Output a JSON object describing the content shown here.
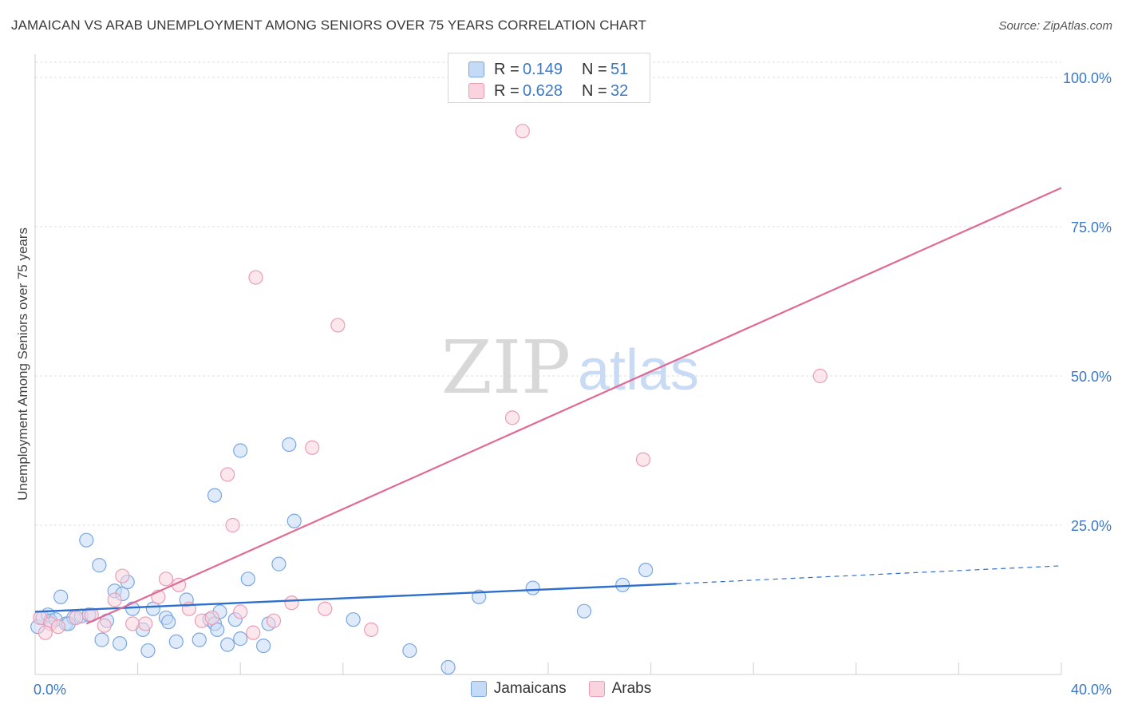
{
  "header": {
    "title": "JAMAICAN VS ARAB UNEMPLOYMENT AMONG SENIORS OVER 75 YEARS CORRELATION CHART",
    "source": "Source: ZipAtlas.com"
  },
  "watermark": {
    "zip": "ZIP",
    "atlas": "atlas"
  },
  "legend_top": [
    {
      "r_label": "R =",
      "r_value": "0.149",
      "n_label": "N =",
      "n_value": "51",
      "color": "#c5daf7"
    },
    {
      "r_label": "R =",
      "r_value": "0.628",
      "n_label": "N =",
      "n_value": "32",
      "color": "#fad3df"
    }
  ],
  "legend_bottom": [
    {
      "label": "Jamaicans",
      "color": "#c5daf7"
    },
    {
      "label": "Arabs",
      "color": "#fad3df"
    }
  ],
  "chart_data": {
    "type": "scatter",
    "title": "JAMAICAN VS ARAB UNEMPLOYMENT AMONG SENIORS OVER 75 YEARS CORRELATION CHART",
    "xlabel": "",
    "ylabel": "Unemployment Among Seniors over 75 years",
    "xlim": [
      0,
      40
    ],
    "ylim": [
      0,
      100
    ],
    "x_tick_labels": [
      {
        "value": 0,
        "label": "0.0%"
      },
      {
        "value": 40,
        "label": "40.0%"
      }
    ],
    "y_tick_labels": [
      {
        "value": 25,
        "label": "25.0%"
      },
      {
        "value": 50,
        "label": "50.0%"
      },
      {
        "value": 75,
        "label": "75.0%"
      },
      {
        "value": 100,
        "label": "100.0%"
      }
    ],
    "grid": true,
    "series": [
      {
        "name": "Jamaicans",
        "color": "#7aa7e0",
        "fill": "#c5daf7",
        "line_color": "#2e6fce",
        "trend": {
          "x0": 0,
          "y0": 10.5,
          "x1": 25,
          "y1": 15.2,
          "dash_to_x": 40,
          "dash_to_y": 18.2
        },
        "points": [
          [
            0.1,
            8.0
          ],
          [
            0.3,
            9.5
          ],
          [
            0.5,
            10.0
          ],
          [
            0.6,
            9.0
          ],
          [
            0.8,
            9.2
          ],
          [
            1.0,
            13.0
          ],
          [
            1.2,
            8.5
          ],
          [
            1.5,
            9.5
          ],
          [
            1.8,
            9.8
          ],
          [
            2.0,
            22.5
          ],
          [
            2.5,
            18.3
          ],
          [
            2.6,
            5.8
          ],
          [
            2.8,
            9.0
          ],
          [
            3.1,
            14.0
          ],
          [
            3.4,
            13.5
          ],
          [
            3.3,
            5.2
          ],
          [
            3.6,
            15.5
          ],
          [
            3.8,
            11.0
          ],
          [
            4.2,
            7.5
          ],
          [
            4.4,
            4.0
          ],
          [
            4.6,
            11.0
          ],
          [
            5.1,
            9.5
          ],
          [
            5.2,
            8.8
          ],
          [
            5.5,
            5.5
          ],
          [
            5.9,
            12.5
          ],
          [
            6.4,
            5.8
          ],
          [
            6.8,
            9.2
          ],
          [
            7.0,
            8.5
          ],
          [
            7.1,
            7.5
          ],
          [
            7.2,
            10.5
          ],
          [
            7.5,
            5.0
          ],
          [
            7.8,
            9.2
          ],
          [
            8.0,
            37.5
          ],
          [
            8.0,
            6.0
          ],
          [
            8.3,
            16.0
          ],
          [
            8.9,
            4.8
          ],
          [
            9.1,
            8.5
          ],
          [
            9.5,
            18.5
          ],
          [
            9.9,
            38.5
          ],
          [
            10.1,
            25.7
          ],
          [
            12.4,
            9.2
          ],
          [
            14.6,
            4.0
          ],
          [
            16.1,
            1.2
          ],
          [
            17.3,
            13.0
          ],
          [
            19.4,
            14.5
          ],
          [
            21.4,
            10.6
          ],
          [
            22.9,
            15.0
          ],
          [
            23.8,
            17.5
          ],
          [
            7.0,
            30.0
          ],
          [
            1.3,
            8.5
          ],
          [
            2.1,
            10.0
          ]
        ]
      },
      {
        "name": "Arabs",
        "color": "#eb9db6",
        "fill": "#fad3df",
        "line_color": "#e06a94",
        "trend": {
          "x0": 2.0,
          "y0": 8.5,
          "x1": 40,
          "y1": 81.5
        },
        "points": [
          [
            0.2,
            9.5
          ],
          [
            0.6,
            8.5
          ],
          [
            0.9,
            8.0
          ],
          [
            1.6,
            9.5
          ],
          [
            2.2,
            10.0
          ],
          [
            2.7,
            8.2
          ],
          [
            3.1,
            12.5
          ],
          [
            3.4,
            16.5
          ],
          [
            3.8,
            8.5
          ],
          [
            4.3,
            8.5
          ],
          [
            4.8,
            13.0
          ],
          [
            5.1,
            16.0
          ],
          [
            5.6,
            15.0
          ],
          [
            6.0,
            11.0
          ],
          [
            6.5,
            9.0
          ],
          [
            6.9,
            9.5
          ],
          [
            7.5,
            33.5
          ],
          [
            7.7,
            25.0
          ],
          [
            8.0,
            10.5
          ],
          [
            8.5,
            7.0
          ],
          [
            8.6,
            66.5
          ],
          [
            9.3,
            9.0
          ],
          [
            10.0,
            12.0
          ],
          [
            10.8,
            38.0
          ],
          [
            11.3,
            11.0
          ],
          [
            11.8,
            58.5
          ],
          [
            13.1,
            7.5
          ],
          [
            18.6,
            43.0
          ],
          [
            19.0,
            91.0
          ],
          [
            23.7,
            36.0
          ],
          [
            30.6,
            50.0
          ],
          [
            0.4,
            7.0
          ]
        ]
      }
    ]
  }
}
